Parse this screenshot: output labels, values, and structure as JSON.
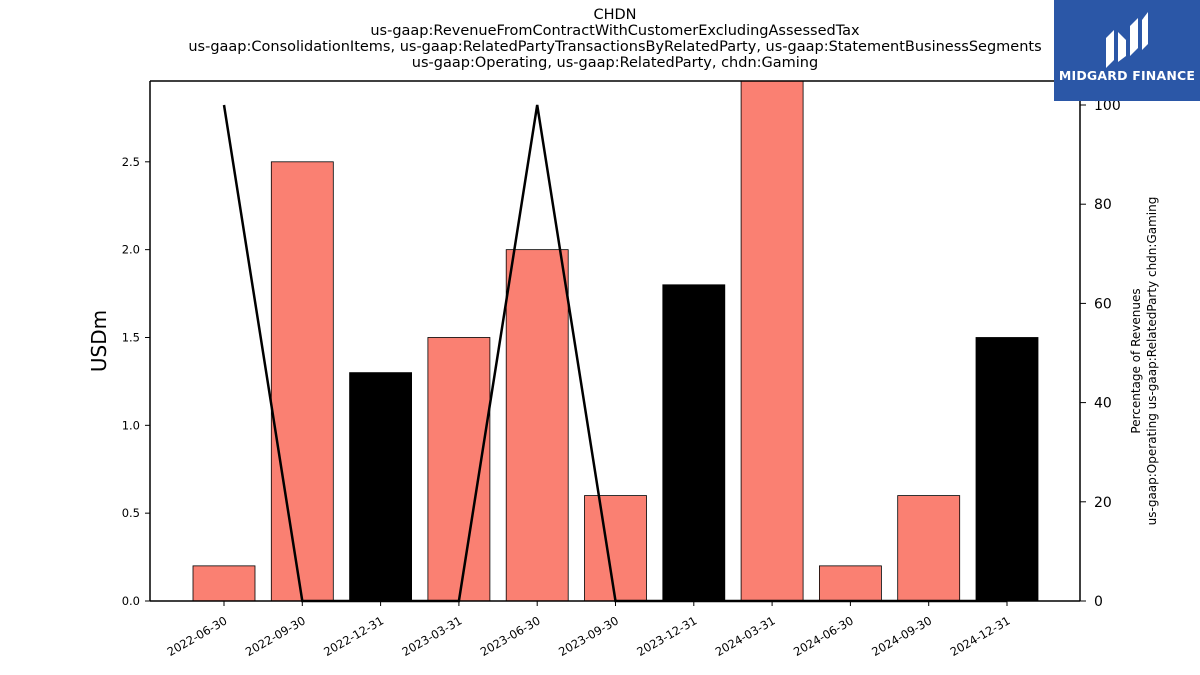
{
  "title_lines": [
    "CHDN",
    "us-gaap:RevenueFromContractWithCustomerExcludingAssessedTax",
    "us-gaap:ConsolidationItems, us-gaap:RelatedPartyTransactionsByRelatedParty, us-gaap:StatementBusinessSegments",
    "us-gaap:Operating, us-gaap:RelatedParty, chdn:Gaming"
  ],
  "logo": {
    "text": "MIDGARD FINANCE",
    "icon": "midgard-m-logo-icon",
    "background": "#2b57a7"
  },
  "chart_data": {
    "type": "bar",
    "categories": [
      "2022-06-30",
      "2022-09-30",
      "2022-12-31",
      "2023-03-31",
      "2023-06-30",
      "2023-09-30",
      "2023-12-31",
      "2024-03-31",
      "2024-06-30",
      "2024-09-30",
      "2024-12-31"
    ],
    "values": [
      0.2,
      2.5,
      1.3,
      1.5,
      2.0,
      0.6,
      1.8,
      3.0,
      0.2,
      0.6,
      1.5
    ],
    "bar_colors": [
      "#fa8072",
      "#fa8072",
      "#000000",
      "#fa8072",
      "#fa8072",
      "#fa8072",
      "#000000",
      "#fa8072",
      "#fa8072",
      "#fa8072",
      "#000000"
    ],
    "ylabel": "USDm",
    "ylim": [
      0,
      2.96
    ],
    "yticks": [
      "0.0",
      "0.5",
      "1.0",
      "1.5",
      "2.0",
      "2.5"
    ],
    "secondary_axis": {
      "type": "line",
      "ylabel_lines": [
        "Percentage of Revenues",
        "us-gaap:Operating us-gaap:RelatedParty chdn:Gaming"
      ],
      "values": [
        100,
        0,
        0,
        0,
        100,
        0,
        0,
        0,
        0,
        0,
        0
      ],
      "ylim": [
        0,
        100
      ],
      "yticks": [
        "0",
        "20",
        "40",
        "60",
        "80",
        "100"
      ],
      "color": "#000000"
    },
    "grid": false
  }
}
